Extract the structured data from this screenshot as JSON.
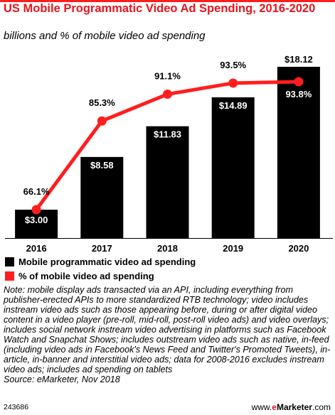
{
  "chart_data": {
    "type": "bar",
    "title": "US Mobile Programmatic Video Ad Spending, 2016-2020",
    "subtitle": "billions and % of mobile video ad spending",
    "categories": [
      "2016",
      "2017",
      "2018",
      "2019",
      "2020"
    ],
    "series": [
      {
        "name": "Mobile programmatic video ad spending",
        "type": "bar",
        "values": [
          3.0,
          8.58,
          11.83,
          14.89,
          18.12
        ],
        "labels": [
          "$3.00",
          "$8.58",
          "$11.83",
          "$14.89",
          "$18.12"
        ],
        "color": "#000000"
      },
      {
        "name": "% of mobile video ad spending",
        "type": "line",
        "values": [
          66.1,
          85.3,
          91.1,
          93.5,
          93.8
        ],
        "labels": [
          "66.1%",
          "85.3%",
          "91.1%",
          "93.5%",
          "93.8%"
        ],
        "color": "#ff1e1e"
      }
    ],
    "legend_position": "bottom-left",
    "grid": false
  },
  "note": "Note: mobile display ads transacted via an API, including everything from publisher-erected APIs to more standardized RTB technology; video includes instream video ads such as those appearing before, during or after digital video content in a video player (pre-roll, mid-roll, post-roll video ads) and video overlays; includes social network instream video advertising in platforms such as Facebook Watch and Snapchat Shows; includes outstream video ads such as native, in-feed (including video ads in Facebook's News Feed and Twitter's Promoted Tweets), in-article, in-banner and interstitial video ads; data for 2008-2016 excludes instream video ads; includes ad spending on tablets",
  "source": "Source: eMarketer, Nov 2018",
  "footer": {
    "chart_id": "243686",
    "brand_prefix": "www.",
    "brand_e": "e",
    "brand_name": "Marketer",
    "brand_suffix": ".com"
  }
}
